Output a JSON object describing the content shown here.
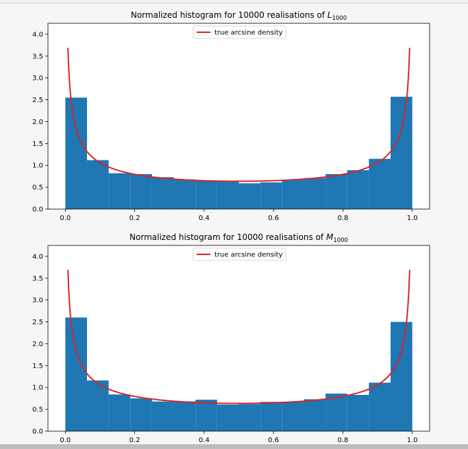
{
  "chart_data": [
    {
      "type": "bar",
      "title_main": "Normalized histogram for 10000 realisations of ",
      "title_var": "L",
      "title_sub": "1000",
      "bin_edges": [
        0.0,
        0.0625,
        0.125,
        0.1875,
        0.25,
        0.3125,
        0.375,
        0.4375,
        0.5,
        0.5625,
        0.625,
        0.6875,
        0.75,
        0.8125,
        0.875,
        0.9375,
        1.0
      ],
      "values": [
        2.55,
        1.12,
        0.82,
        0.8,
        0.73,
        0.68,
        0.66,
        0.64,
        0.59,
        0.61,
        0.67,
        0.71,
        0.8,
        0.89,
        1.15,
        2.57
      ],
      "series": [
        {
          "name": "true arcsine density",
          "function": "1/(pi*sqrt(x*(1-x)))",
          "color": "#d62728"
        }
      ],
      "xlim": [
        -0.05,
        1.05
      ],
      "ylim": [
        0,
        4.25
      ],
      "xticks": [
        0.0,
        0.2,
        0.4,
        0.6,
        0.8,
        1.0
      ],
      "xtick_labels": [
        "0.0",
        "0.2",
        "0.4",
        "0.6",
        "0.8",
        "1.0"
      ],
      "yticks": [
        0.0,
        0.5,
        1.0,
        1.5,
        2.0,
        2.5,
        3.0,
        3.5,
        4.0
      ],
      "ytick_labels": [
        "0.0",
        "0.5",
        "1.0",
        "1.5",
        "2.0",
        "2.5",
        "3.0",
        "3.5",
        "4.0"
      ],
      "bar_color": "#1f77b4",
      "legend": "upper center",
      "grid": false
    },
    {
      "type": "bar",
      "title_main": "Normalized histogram for 10000 realisations of ",
      "title_var": "M",
      "title_sub": "1000",
      "bin_edges": [
        0.0,
        0.0625,
        0.125,
        0.1875,
        0.25,
        0.3125,
        0.375,
        0.4375,
        0.5,
        0.5625,
        0.625,
        0.6875,
        0.75,
        0.8125,
        0.875,
        0.9375,
        1.0
      ],
      "values": [
        2.6,
        1.16,
        0.84,
        0.75,
        0.68,
        0.68,
        0.72,
        0.61,
        0.62,
        0.67,
        0.67,
        0.73,
        0.86,
        0.83,
        1.11,
        2.5
      ],
      "series": [
        {
          "name": "true arcsine density",
          "function": "1/(pi*sqrt(x*(1-x)))",
          "color": "#d62728"
        }
      ],
      "xlim": [
        -0.05,
        1.05
      ],
      "ylim": [
        0,
        4.25
      ],
      "xticks": [
        0.0,
        0.2,
        0.4,
        0.6,
        0.8,
        1.0
      ],
      "xtick_labels": [
        "0.0",
        "0.2",
        "0.4",
        "0.6",
        "0.8",
        "1.0"
      ],
      "yticks": [
        0.0,
        0.5,
        1.0,
        1.5,
        2.0,
        2.5,
        3.0,
        3.5,
        4.0
      ],
      "ytick_labels": [
        "0.0",
        "0.5",
        "1.0",
        "1.5",
        "2.0",
        "2.5",
        "3.0",
        "3.5",
        "4.0"
      ],
      "bar_color": "#1f77b4",
      "legend": "upper center",
      "grid": false
    }
  ]
}
